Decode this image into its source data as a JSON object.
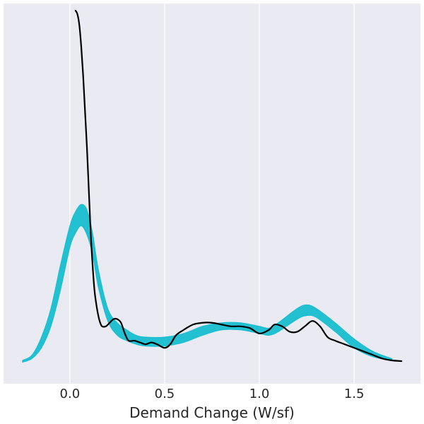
{
  "chart_data": {
    "type": "line",
    "title": "",
    "xlabel": "Demand Change (W/sf)",
    "ylabel": "",
    "xlim": [
      -0.35,
      1.85
    ],
    "ylim": [
      -0.06,
      1.0
    ],
    "x_ticks": [
      0.0,
      0.5,
      1.0,
      1.5
    ],
    "x_tick_labels": [
      "0.0",
      "0.5",
      "1.0",
      "1.5"
    ],
    "grid": true,
    "legend": "none",
    "colors": {
      "background": "#eaeaf2",
      "grid": "#ffffff",
      "band": "#17becf",
      "line": "#000000"
    },
    "series": [
      {
        "kind": "band",
        "x": [
          -0.25,
          -0.2,
          -0.15,
          -0.1,
          -0.05,
          0.0,
          0.03,
          0.06,
          0.09,
          0.12,
          0.15,
          0.2,
          0.25,
          0.3,
          0.35,
          0.4,
          0.5,
          0.6,
          0.7,
          0.8,
          0.9,
          1.0,
          1.05,
          1.1,
          1.2,
          1.25,
          1.3,
          1.4,
          1.5,
          1.6,
          1.7
        ],
        "lower": [
          0.0,
          0.01,
          0.04,
          0.1,
          0.2,
          0.32,
          0.36,
          0.38,
          0.355,
          0.3,
          0.21,
          0.115,
          0.075,
          0.06,
          0.05,
          0.045,
          0.045,
          0.055,
          0.075,
          0.09,
          0.09,
          0.08,
          0.075,
          0.085,
          0.12,
          0.13,
          0.125,
          0.085,
          0.04,
          0.015,
          0.005
        ],
        "upper": [
          0.005,
          0.02,
          0.07,
          0.15,
          0.27,
          0.38,
          0.42,
          0.44,
          0.425,
          0.36,
          0.26,
          0.15,
          0.11,
          0.09,
          0.075,
          0.07,
          0.07,
          0.08,
          0.1,
          0.11,
          0.11,
          0.1,
          0.095,
          0.11,
          0.15,
          0.16,
          0.15,
          0.11,
          0.065,
          0.03,
          0.01
        ]
      },
      {
        "kind": "line",
        "x": [
          0.03,
          0.04,
          0.05,
          0.06,
          0.07,
          0.08,
          0.09,
          0.1,
          0.11,
          0.12,
          0.13,
          0.14,
          0.15,
          0.16,
          0.17,
          0.19,
          0.21,
          0.23,
          0.25,
          0.27,
          0.29,
          0.31,
          0.34,
          0.37,
          0.4,
          0.43,
          0.46,
          0.5,
          0.53,
          0.56,
          0.6,
          0.65,
          0.7,
          0.75,
          0.8,
          0.85,
          0.9,
          0.95,
          1.0,
          1.05,
          1.08,
          1.12,
          1.16,
          1.2,
          1.24,
          1.28,
          1.32,
          1.36,
          1.4,
          1.45,
          1.5,
          1.55,
          1.6,
          1.65,
          1.7,
          1.75
        ],
        "y": [
          0.98,
          0.97,
          0.94,
          0.88,
          0.8,
          0.7,
          0.6,
          0.48,
          0.36,
          0.27,
          0.2,
          0.16,
          0.13,
          0.11,
          0.1,
          0.1,
          0.11,
          0.12,
          0.12,
          0.11,
          0.08,
          0.06,
          0.06,
          0.055,
          0.05,
          0.055,
          0.05,
          0.04,
          0.05,
          0.075,
          0.09,
          0.105,
          0.11,
          0.11,
          0.105,
          0.1,
          0.1,
          0.095,
          0.08,
          0.09,
          0.105,
          0.1,
          0.085,
          0.085,
          0.1,
          0.115,
          0.1,
          0.07,
          0.06,
          0.05,
          0.04,
          0.03,
          0.02,
          0.01,
          0.005,
          0.003
        ]
      }
    ]
  }
}
